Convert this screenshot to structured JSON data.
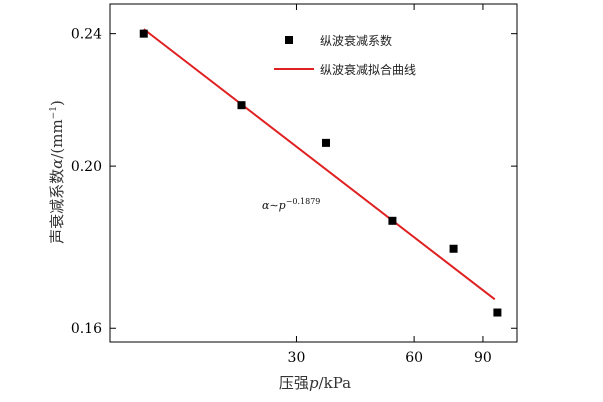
{
  "chart_data": {
    "type": "scatter",
    "xscale": "log",
    "yscale": "log",
    "xlim": [
      10,
      110
    ],
    "ylim": [
      0.157,
      0.25
    ],
    "xticks": [
      30,
      60,
      90
    ],
    "yticks": [
      0.16,
      0.2,
      0.24
    ],
    "xtick_labels": [
      "30",
      "60",
      "90"
    ],
    "ytick_labels": [
      "0.16",
      "0.20",
      "0.24"
    ],
    "xlabel_prefix": "压强",
    "xlabel_var": "p",
    "xlabel_suffix": "/kPa",
    "ylabel_prefix": "声衰减系数",
    "ylabel_var": "α",
    "ylabel_unit": "/(mm",
    "ylabel_exp": "−1",
    "ylabel_close": ")",
    "series": [
      {
        "name": "纵波衰减系数",
        "kind": "scatter",
        "marker": "square",
        "color": "#000000",
        "x": [
          12.2,
          21.7,
          35.7,
          52.8,
          75.7,
          98.0
        ],
        "y": [
          0.24,
          0.2175,
          0.2065,
          0.1855,
          0.1785,
          0.1635
        ]
      },
      {
        "name": "纵波衰减拟合曲线",
        "kind": "line",
        "color": "#e02020",
        "x": [
          12.2,
          96.5
        ],
        "y": [
          0.2415,
          0.1665
        ]
      }
    ],
    "annotation": {
      "base": "α∼p",
      "exponent": "−0.1879"
    },
    "legend_position": "top-right",
    "grid": false
  }
}
